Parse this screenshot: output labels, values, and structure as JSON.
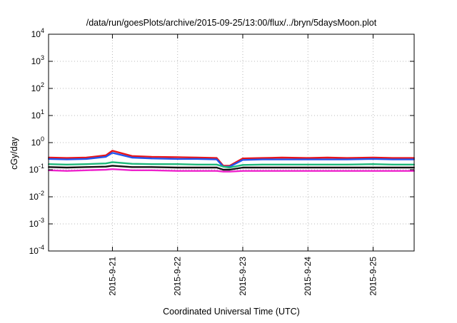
{
  "chart_data": {
    "type": "line",
    "title": "/data/run/goesPlots/archive/2015-09-25/13:00/flux/../bryn/5daysMoon.plot",
    "xlabel": "Coordinated Universal Time (UTC)",
    "ylabel": "cGy/day",
    "yscale": "log",
    "ylim": [
      0.0001,
      10000
    ],
    "xlim": [
      -0.98,
      4.63
    ],
    "grid": true,
    "x_ticks": [
      {
        "label": "2015-9-21",
        "value": 0
      },
      {
        "label": "2015-9-22",
        "value": 1
      },
      {
        "label": "2015-9-23",
        "value": 2
      },
      {
        "label": "2015-9-24",
        "value": 3
      },
      {
        "label": "2015-9-25",
        "value": 4
      }
    ],
    "y_ticks": [
      {
        "mant": "10",
        "exp": "-4",
        "value": 0.0001
      },
      {
        "mant": "10",
        "exp": "-3",
        "value": 0.001
      },
      {
        "mant": "10",
        "exp": "-2",
        "value": 0.01
      },
      {
        "mant": "10",
        "exp": "-1",
        "value": 0.1
      },
      {
        "mant": "10",
        "exp": "0",
        "value": 1
      },
      {
        "mant": "10",
        "exp": "1",
        "value": 10
      },
      {
        "mant": "10",
        "exp": "2",
        "value": 100
      },
      {
        "mant": "10",
        "exp": "3",
        "value": 1000
      },
      {
        "mant": "10",
        "exp": "4",
        "value": 10000
      }
    ],
    "x_values_day_offset_from_2015_09_21": [
      -0.98,
      -0.7,
      -0.4,
      -0.1,
      0.0,
      0.3,
      0.6,
      1.0,
      1.3,
      1.6,
      1.7,
      1.8,
      2.0,
      2.3,
      2.6,
      3.0,
      3.3,
      3.6,
      4.0,
      4.3,
      4.63
    ],
    "series": [
      {
        "color": "#e8141a",
        "values": [
          0.28,
          0.27,
          0.28,
          0.34,
          0.5,
          0.32,
          0.3,
          0.29,
          0.28,
          0.27,
          0.14,
          0.14,
          0.26,
          0.27,
          0.28,
          0.27,
          0.28,
          0.27,
          0.28,
          0.27,
          0.27
        ]
      },
      {
        "color": "#2255ee",
        "values": [
          0.25,
          0.24,
          0.25,
          0.3,
          0.42,
          0.28,
          0.26,
          0.25,
          0.25,
          0.24,
          0.13,
          0.13,
          0.23,
          0.24,
          0.24,
          0.24,
          0.24,
          0.24,
          0.25,
          0.24,
          0.24
        ]
      },
      {
        "color": "#1db87a",
        "values": [
          0.16,
          0.155,
          0.16,
          0.17,
          0.19,
          0.165,
          0.16,
          0.16,
          0.155,
          0.155,
          0.13,
          0.12,
          0.15,
          0.155,
          0.155,
          0.155,
          0.155,
          0.155,
          0.16,
          0.155,
          0.155
        ]
      },
      {
        "color": "#111111",
        "values": [
          0.125,
          0.12,
          0.125,
          0.13,
          0.14,
          0.125,
          0.125,
          0.12,
          0.12,
          0.12,
          0.1,
          0.1,
          0.12,
          0.12,
          0.12,
          0.12,
          0.12,
          0.12,
          0.12,
          0.12,
          0.12
        ]
      },
      {
        "color": "#ee22cc",
        "values": [
          0.095,
          0.09,
          0.095,
          0.1,
          0.105,
          0.095,
          0.095,
          0.09,
          0.09,
          0.09,
          0.085,
          0.085,
          0.09,
          0.09,
          0.09,
          0.09,
          0.09,
          0.09,
          0.09,
          0.09,
          0.09
        ]
      }
    ]
  }
}
